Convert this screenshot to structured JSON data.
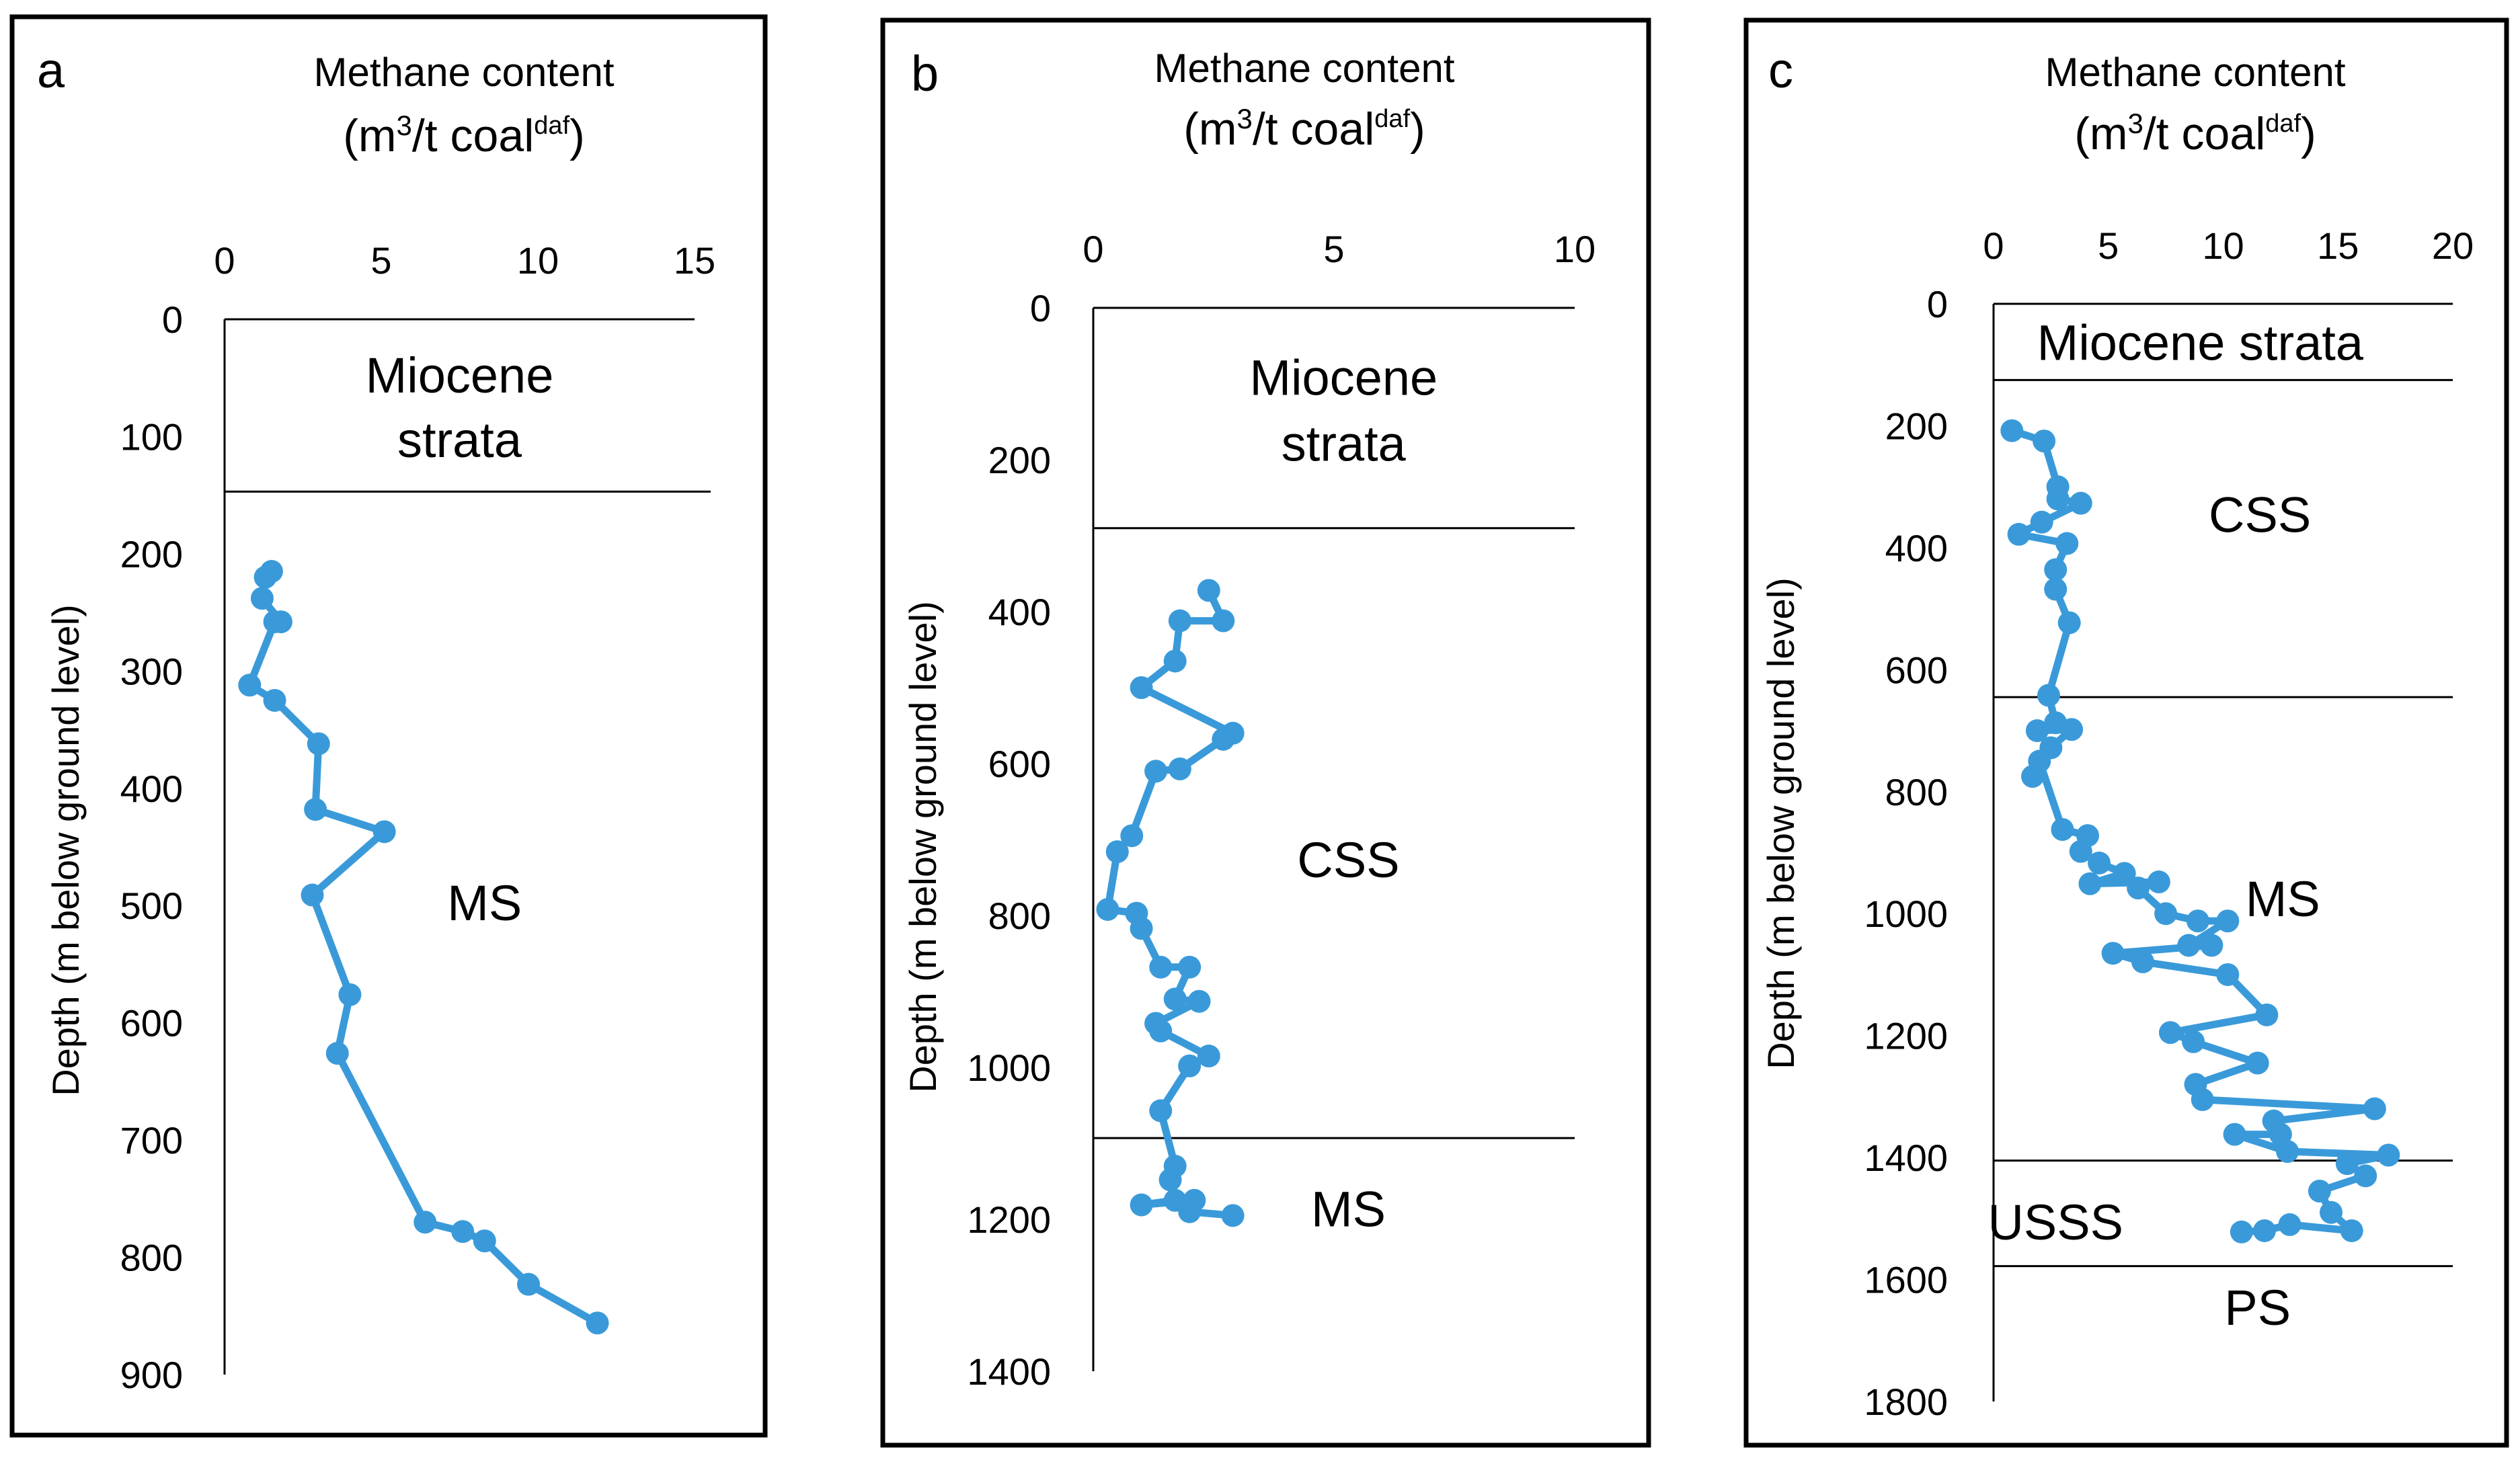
{
  "chart_data": [
    {
      "type": "line",
      "panel_label": "a",
      "title": "Methane content",
      "unit_text": "(m",
      "unit_sup": "3",
      "unit_mid": "/t coal",
      "unit_sup2": "daf",
      "unit_end": ")",
      "xlabel": "Methane content (m3/t coal daf)",
      "ylabel": "Depth (m below ground level)",
      "xlim": [
        0,
        15
      ],
      "ylim": [
        0,
        900
      ],
      "x_ticks": [
        "0",
        "5",
        "10",
        "15"
      ],
      "y_ticks": [
        "0",
        "100",
        "200",
        "300",
        "400",
        "500",
        "600",
        "700",
        "800",
        "900"
      ],
      "boundaries": [
        147
      ],
      "strata_labels": [
        {
          "text": "Miocene",
          "x": 7.5,
          "y": 50
        },
        {
          "text": "strata",
          "x": 7.5,
          "y": 105
        },
        {
          "text": "MS",
          "x": 8.3,
          "y": 500
        }
      ],
      "series": [
        {
          "name": "Methane content",
          "points": [
            [
              1.5,
              215
            ],
            [
              1.3,
              220
            ],
            [
              1.2,
              238
            ],
            [
              1.8,
              258
            ],
            [
              1.6,
              258
            ],
            [
              0.8,
              312
            ],
            [
              1.6,
              325
            ],
            [
              3.0,
              362
            ],
            [
              2.9,
              418
            ],
            [
              5.1,
              437
            ],
            [
              2.8,
              491
            ],
            [
              4.0,
              576
            ],
            [
              3.6,
              626
            ],
            [
              6.4,
              770
            ],
            [
              7.6,
              778
            ],
            [
              8.3,
              786
            ],
            [
              9.7,
              823
            ],
            [
              11.9,
              856
            ]
          ]
        }
      ]
    },
    {
      "type": "line",
      "panel_label": "b",
      "title": "Methane content",
      "unit_text": "(m",
      "unit_sup": "3",
      "unit_mid": "/t coal",
      "unit_sup2": "daf",
      "unit_end": ")",
      "xlabel": "Methane content (m3/t coal daf)",
      "ylabel": "Depth (m below ground level)",
      "xlim": [
        0,
        10
      ],
      "ylim": [
        0,
        1400
      ],
      "x_ticks": [
        "0",
        "5",
        "10"
      ],
      "y_ticks": [
        "0",
        "200",
        "400",
        "600",
        "800",
        "1000",
        "1200",
        "1400"
      ],
      "boundaries": [
        290,
        1093
      ],
      "strata_labels": [
        {
          "text": "Miocene",
          "x": 5.2,
          "y": 95
        },
        {
          "text": "strata",
          "x": 5.2,
          "y": 182
        },
        {
          "text": "CSS",
          "x": 5.3,
          "y": 730
        },
        {
          "text": "MS",
          "x": 5.3,
          "y": 1190
        }
      ],
      "series": [
        {
          "name": "Methane content",
          "points": [
            [
              2.4,
              372
            ],
            [
              2.7,
              412
            ],
            [
              1.8,
              412
            ],
            [
              1.7,
              465
            ],
            [
              1.0,
              500
            ],
            [
              2.9,
              560
            ],
            [
              2.7,
              568
            ],
            [
              1.8,
              607
            ],
            [
              1.3,
              610
            ],
            [
              0.8,
              695
            ],
            [
              0.5,
              716
            ],
            [
              0.3,
              792
            ],
            [
              0.9,
              797
            ],
            [
              1.0,
              817
            ],
            [
              1.4,
              868
            ],
            [
              2.0,
              868
            ],
            [
              1.7,
              910
            ],
            [
              2.2,
              913
            ],
            [
              1.3,
              942
            ],
            [
              1.4,
              952
            ],
            [
              2.4,
              985
            ],
            [
              2.0,
              998
            ],
            [
              1.4,
              1057
            ],
            [
              1.7,
              1130
            ],
            [
              1.6,
              1148
            ],
            [
              1.7,
              1175
            ],
            [
              1.0,
              1181
            ],
            [
              2.1,
              1175
            ],
            [
              2.0,
              1190
            ],
            [
              2.9,
              1195
            ]
          ]
        }
      ]
    },
    {
      "type": "line",
      "panel_label": "c",
      "title": "Methane content",
      "unit_text": "(m",
      "unit_sup": "3",
      "unit_mid": "/t coal",
      "unit_sup2": "daf",
      "unit_end": ")",
      "xlabel": "Methane content (m3/t coal daf)",
      "ylabel": "Depth (m below ground level)",
      "xlim": [
        0,
        20
      ],
      "ylim": [
        0,
        1800
      ],
      "x_ticks": [
        "0",
        "5",
        "10",
        "15",
        "20"
      ],
      "y_ticks": [
        "0",
        "200",
        "400",
        "600",
        "800",
        "1000",
        "1200",
        "1400",
        "1600",
        "1800"
      ],
      "boundaries": [
        125,
        645,
        1405,
        1578
      ],
      "strata_labels": [
        {
          "text": "Miocene strata",
          "x": 9,
          "y": 68
        },
        {
          "text": "CSS",
          "x": 11.6,
          "y": 350
        },
        {
          "text": "MS",
          "x": 12.6,
          "y": 980
        },
        {
          "text": "USSS",
          "x": 2.7,
          "y": 1510
        },
        {
          "text": "PS",
          "x": 11.5,
          "y": 1650
        }
      ],
      "series": [
        {
          "name": "Methane content",
          "points": [
            [
              0.8,
              208
            ],
            [
              2.2,
              225
            ],
            [
              2.8,
              300
            ],
            [
              2.8,
              320
            ],
            [
              3.8,
              327
            ],
            [
              2.1,
              358
            ],
            [
              1.1,
              378
            ],
            [
              3.2,
              393
            ],
            [
              2.7,
              436
            ],
            [
              2.7,
              468
            ],
            [
              3.3,
              523
            ],
            [
              2.4,
              642
            ],
            [
              2.7,
              687
            ],
            [
              1.9,
              700
            ],
            [
              3.4,
              698
            ],
            [
              2.5,
              728
            ],
            [
              1.7,
              775
            ],
            [
              2.0,
              750
            ],
            [
              3.0,
              862
            ],
            [
              4.1,
              872
            ],
            [
              3.8,
              898
            ],
            [
              4.6,
              917
            ],
            [
              5.7,
              934
            ],
            [
              4.2,
              951
            ],
            [
              7.2,
              948
            ],
            [
              6.3,
              958
            ],
            [
              7.5,
              1000
            ],
            [
              8.9,
              1012
            ],
            [
              10.2,
              1012
            ],
            [
              8.5,
              1052
            ],
            [
              9.5,
              1052
            ],
            [
              5.2,
              1065
            ],
            [
              6.5,
              1079
            ],
            [
              10.2,
              1100
            ],
            [
              11.9,
              1166
            ],
            [
              7.7,
              1195
            ],
            [
              8.7,
              1210
            ],
            [
              11.5,
              1245
            ],
            [
              8.8,
              1280
            ],
            [
              9.1,
              1305
            ],
            [
              16.6,
              1320
            ],
            [
              12.2,
              1340
            ],
            [
              12.5,
              1362
            ],
            [
              10.5,
              1362
            ],
            [
              12.8,
              1390
            ],
            [
              17.2,
              1396
            ],
            [
              15.4,
              1410
            ],
            [
              16.2,
              1430
            ],
            [
              14.2,
              1455
            ],
            [
              14.7,
              1490
            ],
            [
              15.6,
              1520
            ],
            [
              12.9,
              1510
            ],
            [
              11.8,
              1520
            ],
            [
              10.8,
              1522
            ]
          ]
        }
      ]
    }
  ]
}
